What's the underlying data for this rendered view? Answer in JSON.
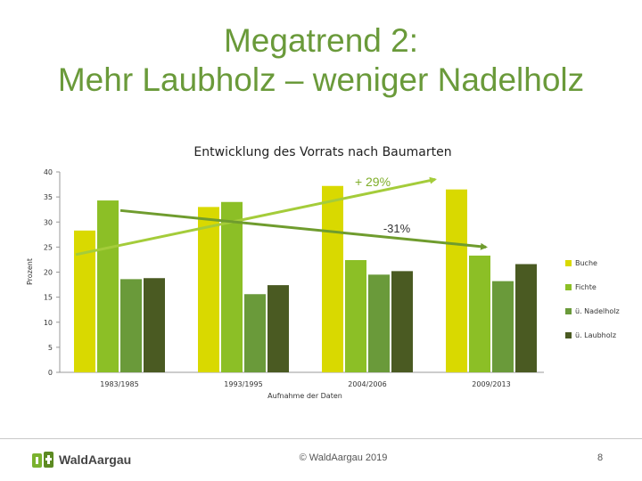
{
  "slide": {
    "title_line1": "Megatrend 2:",
    "title_line2": "Mehr Laubholz – weniger Nadelholz",
    "footer_copyright": "© WaldAargau 2019",
    "page_number": "8",
    "logo_text": "WaldAargau"
  },
  "colors": {
    "title": "#6a9a3a",
    "arrow_up": "#a4cc3a",
    "arrow_down": "#6f9c2e"
  },
  "chart_data": {
    "type": "bar",
    "title": "Entwicklung des Vorrats nach Baumarten",
    "xlabel": "Aufnahme der Daten",
    "ylabel": "Prozent",
    "ylim": [
      0,
      40
    ],
    "yticks": [
      0,
      5,
      10,
      15,
      20,
      25,
      30,
      35,
      40
    ],
    "categories": [
      "1983/1985",
      "1993/1995",
      "2004/2006",
      "2009/2013"
    ],
    "series": [
      {
        "name": "Buche",
        "color": "#d9d900",
        "values": [
          28.3,
          33.0,
          37.2,
          36.5
        ]
      },
      {
        "name": "Fichte",
        "color": "#8cbf26",
        "values": [
          34.3,
          34.0,
          22.4,
          23.3
        ]
      },
      {
        "name": "ü. Nadelholz",
        "color": "#6a9a3a",
        "values": [
          18.6,
          15.6,
          19.5,
          18.2
        ]
      },
      {
        "name": "ü. Laubholz",
        "color": "#4a5a22",
        "values": [
          18.8,
          17.4,
          20.2,
          21.6
        ]
      }
    ],
    "annotations": [
      {
        "label": "+ 29%",
        "series": "Buche",
        "direction": "up",
        "from_value": 23.5,
        "to_value": 38.5
      },
      {
        "label": "-31%",
        "series": "Fichte",
        "direction": "down",
        "from_value": 32.3,
        "to_value": 25.0
      }
    ],
    "legend_position": "right"
  }
}
